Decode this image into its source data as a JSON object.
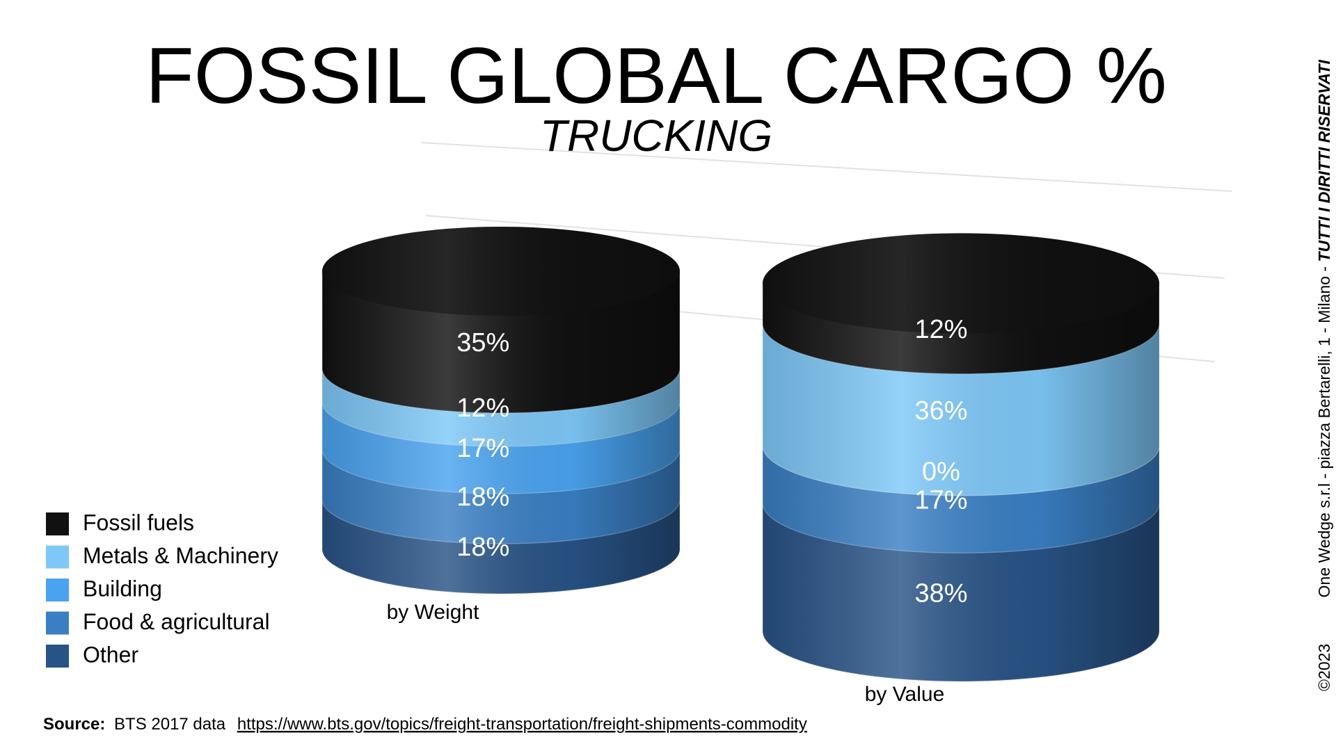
{
  "chart_data": {
    "type": "stacked-cylinder",
    "title": "FOSSIL GLOBAL CARGO %",
    "subtitle": "TRUCKING",
    "categories": [
      "by Weight",
      "by Value"
    ],
    "series": [
      {
        "name": "Fossil fuels",
        "color": "#111111",
        "values": [
          35,
          12
        ],
        "value_labels": [
          "35%",
          "12%"
        ]
      },
      {
        "name": "Metals & Machinery",
        "color": "#7ec8f8",
        "values": [
          12,
          36
        ],
        "value_labels": [
          "12%",
          "36%"
        ]
      },
      {
        "name": "Building",
        "color": "#4aa3f0",
        "values": [
          17,
          0
        ],
        "value_labels": [
          "17%",
          "0%"
        ]
      },
      {
        "name": "Food & agricultural",
        "color": "#3a7fc4",
        "values": [
          18,
          17
        ],
        "value_labels": [
          "18%",
          "17%"
        ]
      },
      {
        "name": "Other",
        "color": "#285386",
        "values": [
          18,
          38
        ],
        "value_labels": [
          "18%",
          "38%"
        ]
      }
    ],
    "legend": "left",
    "source_label": "Source:",
    "source_text": "BTS 2017 data",
    "source_url": "https://www.bts.gov/topics/freight-transportation/freight-shipments-commodity",
    "copyright": "©2023",
    "address": "One Wedge s.r.l - piazza Bertarelli, 1 - Milano - ",
    "rights": "TUTTI I DIRITTI RISERVATI"
  }
}
